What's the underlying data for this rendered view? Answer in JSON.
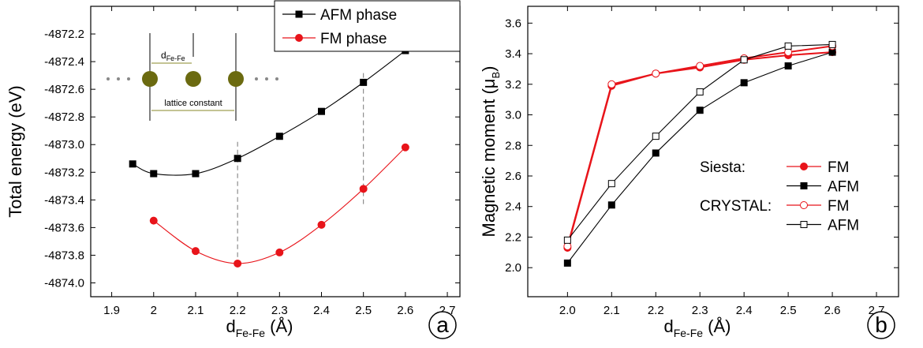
{
  "chart_data": [
    {
      "type": "line",
      "smooth": true,
      "ylabel": "Total energy (eV)",
      "xlabel": [
        "d",
        "Fe-Fe",
        " (Å)"
      ],
      "panel": "a",
      "xlim": [
        1.85,
        2.73
      ],
      "xticks": [
        1.9,
        2.0,
        2.1,
        2.2,
        2.3,
        2.4,
        2.5,
        2.6,
        2.7
      ],
      "ylim": [
        -4874.1,
        -4872.0
      ],
      "yticks": [
        {
          "value": -4874,
          "label": "-4874.0"
        },
        -4873.8,
        -4873.6,
        -4873.4,
        -4873.2,
        {
          "value": -4873,
          "label": "-4873.0"
        },
        -4872.8,
        -4872.6,
        -4872.4,
        -4872.2
      ],
      "legend": "upper right",
      "series": [
        {
          "name": "AFM phase",
          "color": "#000000",
          "marker": "square",
          "fill": "filled",
          "x": [
            1.95,
            2.0,
            2.1,
            2.2,
            2.3,
            2.4,
            2.5,
            2.6
          ],
          "values": [
            -4873.14,
            -4873.21,
            -4873.21,
            -4873.1,
            -4872.94,
            -4872.76,
            -4872.55,
            -4872.32
          ]
        },
        {
          "name": "FM phase",
          "color": "#e8141a",
          "marker": "circle",
          "fill": "filled",
          "x": [
            2.0,
            2.1,
            2.2,
            2.3,
            2.4,
            2.5,
            2.6
          ],
          "values": [
            -4873.55,
            -4873.77,
            -4873.86,
            -4873.78,
            -4873.58,
            -4873.32,
            -4873.02
          ]
        }
      ],
      "reference_lines": [
        {
          "x": 2.2,
          "y": [
            -4873.87,
            -4872.96
          ]
        },
        {
          "x": 2.5,
          "y": [
            -4873.43,
            -4872.48
          ]
        }
      ],
      "inset": {
        "d": "d",
        "d_sub": "Fe-Fe",
        "lattice": "lattice constant"
      }
    },
    {
      "type": "line",
      "smooth": false,
      "ylabel": [
        "Magnetic moment (μ",
        "B",
        ")"
      ],
      "xlabel": [
        "d",
        "Fe-Fe",
        " (Å)"
      ],
      "panel": "b",
      "xlim": [
        1.91,
        2.75
      ],
      "xticks": [
        {
          "value": 2,
          "label": "2.0"
        },
        2.1,
        2.2,
        2.3,
        2.4,
        2.5,
        2.6,
        2.7
      ],
      "ylim": [
        1.81,
        3.71
      ],
      "yticks": [
        {
          "value": 2,
          "label": "2.0"
        },
        2.2,
        2.4,
        2.6,
        2.8,
        {
          "value": 3,
          "label": "3.0"
        },
        3.2,
        3.4,
        3.6
      ],
      "legend": "center right",
      "legend_groups": [
        "Siesta:",
        "CRYSTAL:"
      ],
      "x": [
        2.0,
        2.1,
        2.2,
        2.3,
        2.4,
        2.5,
        2.6
      ],
      "series": [
        {
          "name": "FM",
          "color": "#e8141a",
          "marker": "circle",
          "fill": "filled",
          "values": [
            2.13,
            3.19,
            3.27,
            3.31,
            3.36,
            3.39,
            3.41
          ]
        },
        {
          "name": "AFM",
          "color": "#000000",
          "marker": "square",
          "fill": "filled",
          "values": [
            2.03,
            2.41,
            2.75,
            3.03,
            3.21,
            3.32,
            3.41
          ]
        },
        {
          "name": "FM",
          "color": "#e8141a",
          "marker": "circle",
          "fill": "open",
          "values": [
            2.14,
            3.2,
            3.27,
            3.32,
            3.37,
            3.41,
            3.45
          ]
        },
        {
          "name": "AFM",
          "color": "#000000",
          "marker": "square",
          "fill": "open",
          "values": [
            2.18,
            2.55,
            2.86,
            3.15,
            3.36,
            3.45,
            3.46
          ]
        }
      ]
    }
  ]
}
